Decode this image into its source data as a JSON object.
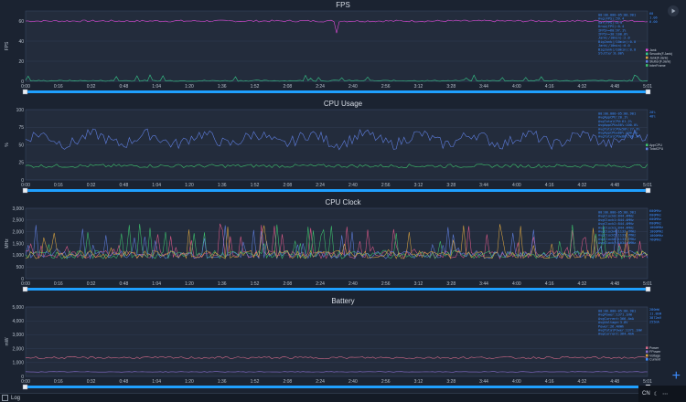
{
  "time_ticks": [
    "0:00",
    "0:16",
    "0:32",
    "0:48",
    "1:04",
    "1:20",
    "1:36",
    "1:52",
    "2:08",
    "2:24",
    "2:40",
    "2:56",
    "3:12",
    "3:28",
    "3:44",
    "4:00",
    "4:16",
    "4:32",
    "4:48",
    "5:01"
  ],
  "panels": [
    {
      "key": "fps",
      "title": "FPS",
      "ylabel": "FPS",
      "y_ticks": [
        "0",
        "20",
        "40",
        "60"
      ],
      "ymax": 70,
      "stats": [
        "00:00.000-05:00.901",
        "Avg(FPS):59.4",
        "Var(FPS):0.3",
        "Drop(FPS):0.4",
        "IFPS>=60:97.1%",
        "IFPS>=30:100.0%",
        "Jank(/10min):2.0",
        "BigJank(/10min):0.0",
        "Jank(/10min):0.0",
        "BigJank(/10min):0.0",
        "Stutter:0.00%"
      ],
      "right_values": [
        "60",
        "1.06",
        "0.00"
      ],
      "legend": [
        "Jank",
        "Smooth(F.Jank)",
        "Jank(F.Jank)",
        "Stutter(F.Jank)",
        "InterFrame"
      ],
      "range_end": "4:6"
    },
    {
      "key": "cpu",
      "title": "CPU Usage",
      "ylabel": "%",
      "y_ticks": [
        "0",
        "25",
        "50",
        "75",
        "100"
      ],
      "ymax": 100,
      "stats": [
        "00:00.000-05:00.901",
        "AvgAppCPU:20.1%",
        "AvgTotalCPU:61.2%",
        "AvgAppCPU≤50%:100.0%",
        "AvgTotalCPU≤50%:27.3%",
        "AvgAppCPU≤80%:100.0%",
        "AvgTotalCPU≤80%:99.7%"
      ],
      "right_values": [
        "20%",
        "48%"
      ],
      "legend": [
        "AppCPU",
        "TotalCPU"
      ],
      "range_end": "5:01"
    },
    {
      "key": "clock",
      "title": "CPU Clock",
      "ylabel": "MHz",
      "y_ticks": [
        "0",
        "500",
        "1,000",
        "1,500",
        "2,000",
        "2,500",
        "3,000"
      ],
      "ymax": 3000,
      "stats": [
        "00:00.000-05:00.901",
        "AvgClock0:844.4MHz",
        "AvgClock1:844.4MHz",
        "AvgClock2:844.4MHz",
        "AvgClock3:844.4MHz",
        "AvgClock4:1133.7MHz",
        "AvgClock5:1133.7MHz",
        "AvgClock6:1133.7MHz",
        "AvgClock7:1034.6MHz"
      ],
      "right_values": [
        "600MHz",
        "600MHz",
        "600MHz",
        "600MHz",
        "1000MHz",
        "1000MHz",
        "1000MHz",
        "760MHz"
      ],
      "legend": [],
      "range_end": "5:01"
    },
    {
      "key": "battery",
      "title": "Battery",
      "ylabel": "mW",
      "y_ticks": [
        "0",
        "1,000",
        "2,000",
        "3,000",
        "4,000",
        "5,000"
      ],
      "ymax": 5000,
      "stats": [
        "00:00.000-05:00.901",
        "AvgPower:1371.1mW",
        "AvgCurrent:366.4mA",
        "AvgVoltage:3.8V",
        "Power:26.4mWh",
        "AvgTotalPower:1371.1mW",
        "AvgCurrent:364.4mA"
      ],
      "right_values": [
        "280mW",
        "11.8mW",
        "3872mV",
        "255mA"
      ],
      "legend": [
        "Power",
        "FPower",
        "Voltage",
        "Current"
      ],
      "range_end": "5:01"
    }
  ],
  "status": {
    "log_label": "Log",
    "lang": "CN"
  },
  "icons": [
    "play-icon",
    "plus-icon",
    "moon-icon",
    "more-icon"
  ],
  "colors": {
    "fps": "#e04ad8",
    "fps_jank": "#36c98a",
    "app_cpu": "#3ec46e",
    "total_cpu": "#5f7fe0",
    "slider": "#1fa0ff",
    "power": "#d46a8a",
    "stat_text": "#3d8dff"
  }
}
